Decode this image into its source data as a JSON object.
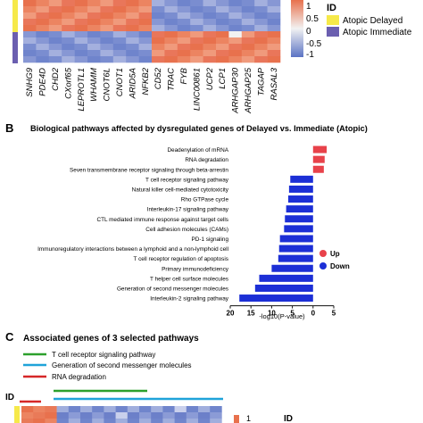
{
  "heatmap_top": {
    "genes": [
      "SNHG9",
      "PDE4D",
      "CHD2",
      "CXorf65",
      "LEPROTL1",
      "WHAMM",
      "CNOT6L",
      "CNOT1",
      "ARID5A",
      "NFKB2",
      "CD52",
      "TRAC",
      "FYB",
      "LINC00861",
      "UCP2",
      "LCP1",
      "ARHGAP30",
      "ARHGAP25",
      "TAGAP",
      "RASAL3"
    ],
    "colorbar_ticks": [
      "1",
      "0.5",
      "0",
      "-0.5",
      "-1"
    ],
    "legend": {
      "title": "ID",
      "items": [
        {
          "label": "Atopic Delayed",
          "color": "#f6e94a"
        },
        {
          "label": "Atopic Immediate",
          "color": "#6b5fb0"
        }
      ]
    },
    "colors": {
      "high": "#e8714d",
      "mid": "#f2f2f2",
      "low": "#5b73c4"
    }
  },
  "panel_b": {
    "letter": "B",
    "title": "Biological pathways affected by dysregulated genes of  Delayed vs. Immediate (Atopic)",
    "chart_data": {
      "type": "bar",
      "orientation": "horizontal",
      "xlabel": "-log10(P-value)",
      "xlim": [
        -5,
        20
      ],
      "xticks": [
        "20",
        "15",
        "10",
        "5",
        "0",
        "5"
      ],
      "categories": [
        "Deadenylation of mRNA",
        "RNA degradation",
        "Seven transmembrane receptor signaling through beta-arrestin",
        "T cell receptor signaling pathway",
        "Natural killer cell-mediated cytotoxicity",
        "Rho GTPase cycle",
        "Interleukin-17 signaling pathway",
        "CTL mediated immune response against target cells",
        "Cell adhesion molecules (CAMs)",
        "PD-1 signaling",
        "Immunoregulatory interactions between a lymphoid and a non-lymphoid cell",
        "T cell receptor regulation of apoptosis",
        "Primary immunodeficiency",
        "T helper cell surface molecules",
        "Generation of second messenger molecules",
        "Interleukin-2 signaling pathway"
      ],
      "series": [
        {
          "name": "Up",
          "color": "#e8424a",
          "values": [
            3.3,
            2.8,
            2.6,
            null,
            null,
            null,
            null,
            null,
            null,
            null,
            null,
            null,
            null,
            null,
            null,
            null
          ]
        },
        {
          "name": "Down",
          "color": "#1c2fd6",
          "values": [
            null,
            null,
            null,
            5.5,
            5.8,
            6.0,
            6.5,
            6.8,
            7.0,
            8.0,
            8.2,
            8.4,
            10.0,
            13.0,
            14.0,
            17.8
          ]
        }
      ],
      "legend_position": "right"
    }
  },
  "panel_c": {
    "letter": "C",
    "title": "Associated genes of 3 selected pathways",
    "pathway_legend": [
      {
        "label": "T cell receptor signaling pathway",
        "color": "#2ca02c"
      },
      {
        "label": "Generation of second messenger molecules",
        "color": "#1fa3d9"
      },
      {
        "label": "RNA degradation",
        "color": "#d62728"
      }
    ],
    "id_label": "ID",
    "colorbar_tick": "1",
    "legend_title": "ID"
  }
}
